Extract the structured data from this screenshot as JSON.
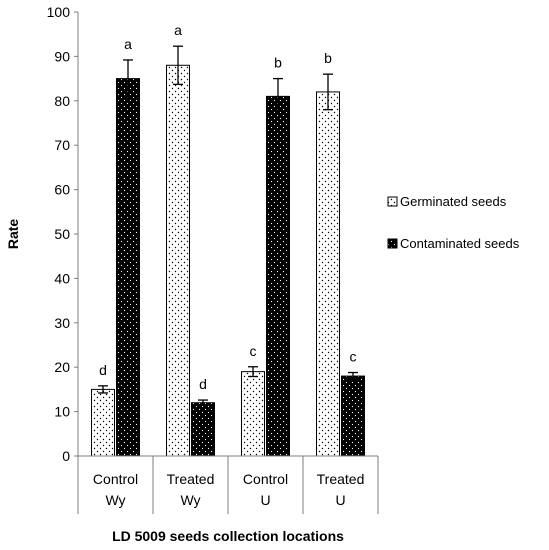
{
  "chart_data": {
    "type": "bar",
    "categories": [
      [
        "Control",
        "Wy"
      ],
      [
        "Treated",
        "Wy"
      ],
      [
        "Control",
        "U"
      ],
      [
        "Treated",
        "U"
      ]
    ],
    "series": [
      {
        "name": "Germinated seeds",
        "values": [
          15,
          88,
          19,
          82
        ],
        "errors": [
          0.8,
          4.3,
          1.1,
          4.0
        ],
        "letters": [
          "d",
          "a",
          "c",
          "b"
        ],
        "pattern": "white-dotted"
      },
      {
        "name": "Contaminated seeds",
        "values": [
          85,
          12,
          81,
          18
        ],
        "errors": [
          4.2,
          0.6,
          4.0,
          0.8
        ],
        "letters": [
          "a",
          "d",
          "b",
          "c"
        ],
        "pattern": "black-dotted"
      }
    ],
    "xlabel": "LD 5009 seeds collection locations",
    "ylabel": "Rate",
    "ylim": [
      0,
      100
    ],
    "yticks": [
      "0",
      "10",
      "20",
      "30",
      "40",
      "50",
      "60",
      "70",
      "80",
      "90",
      "100"
    ],
    "grid": false,
    "legend_position": "right"
  }
}
